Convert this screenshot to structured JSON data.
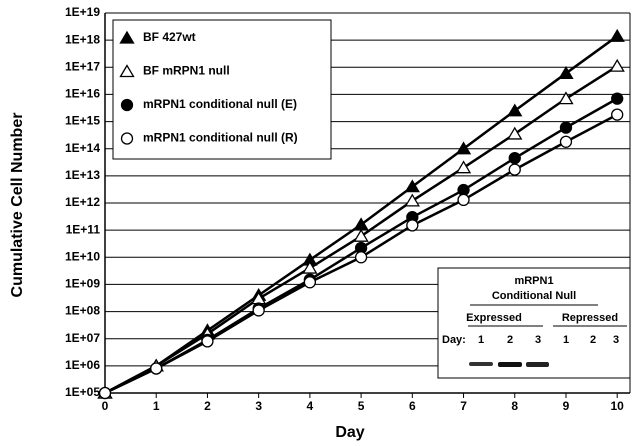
{
  "chart_data": {
    "type": "line",
    "x_label": "Day",
    "y_label": "Cumulative Cell Number",
    "log_y": true,
    "grid": true,
    "legend": "upper-left",
    "x": [
      0,
      1,
      2,
      3,
      4,
      5,
      6,
      7,
      8,
      9,
      10
    ],
    "xlim": [
      0,
      10.25
    ],
    "xticks": [
      0,
      1,
      2,
      3,
      4,
      5,
      6,
      7,
      8,
      9,
      10
    ],
    "ylim": [
      100000,
      1e+19
    ],
    "yticks": [
      {
        "value": 100000.0,
        "label": "1E+05"
      },
      {
        "value": 1000000.0,
        "label": "1E+06"
      },
      {
        "value": 10000000.0,
        "label": "1E+07"
      },
      {
        "value": 100000000.0,
        "label": "1E+08"
      },
      {
        "value": 1000000000.0,
        "label": "1E+09"
      },
      {
        "value": 10000000000.0,
        "label": "1E+10"
      },
      {
        "value": 100000000000.0,
        "label": "1E+11"
      },
      {
        "value": 1000000000000.0,
        "label": "1E+12"
      },
      {
        "value": 10000000000000.0,
        "label": "1E+13"
      },
      {
        "value": 100000000000000.0,
        "label": "1E+14"
      },
      {
        "value": 1000000000000000.0,
        "label": "1E+15"
      },
      {
        "value": 1e+16,
        "label": "1E+16"
      },
      {
        "value": 1e+17,
        "label": "1E+17"
      },
      {
        "value": 1e+18,
        "label": "1E+18"
      },
      {
        "value": 1e+19,
        "label": "1E+19"
      }
    ],
    "series": [
      {
        "name": "BF 427wt",
        "color": "#000000",
        "marker": "triangle",
        "filled": true,
        "values": [
          100000.0,
          1000000.0,
          20000000.0,
          400000000.0,
          8000000000.0,
          160000000000.0,
          4000000000000.0,
          100000000000000.0,
          2500000000000000.0,
          6e+16,
          1.4e+18
        ]
      },
      {
        "name": "BF mRPN1 null",
        "color": "#000000",
        "marker": "triangle",
        "filled": false,
        "values": [
          100000.0,
          1000000.0,
          15000000.0,
          300000000.0,
          4000000000.0,
          60000000000.0,
          1200000000000.0,
          20000000000000.0,
          350000000000000.0,
          7000000000000000.0,
          1.1e+17
        ]
      },
      {
        "name": "mRPN1 conditional null (E)",
        "color": "#000000",
        "marker": "circle",
        "filled": true,
        "values": [
          100000.0,
          800000.0,
          9000000.0,
          130000000.0,
          1500000000.0,
          22000000000.0,
          300000000000.0,
          3000000000000.0,
          45000000000000.0,
          600000000000000.0,
          7000000000000000.0
        ]
      },
      {
        "name": "mRPN1 conditional null (R)",
        "color": "#000000",
        "marker": "circle",
        "filled": false,
        "values": [
          100000.0,
          800000.0,
          8000000.0,
          110000000.0,
          1200000000.0,
          10000000000.0,
          150000000000.0,
          1300000000000.0,
          17000000000000.0,
          180000000000000.0,
          1800000000000000.0
        ]
      }
    ],
    "inset": {
      "title_lines": [
        "mRPN1",
        "Conditional Null"
      ],
      "groups": [
        "Expressed",
        "Repressed"
      ],
      "day_label": "Day:",
      "lanes": [
        "1",
        "2",
        "3",
        "1",
        "2",
        "3"
      ]
    }
  }
}
